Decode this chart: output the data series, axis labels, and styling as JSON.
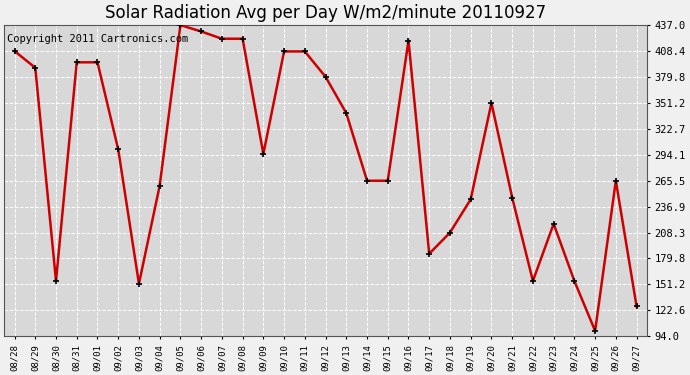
{
  "title": "Solar Radiation Avg per Day W/m2/minute 20110927",
  "copyright": "Copyright 2011 Cartronics.com",
  "dates": [
    "08/28",
    "08/29",
    "08/30",
    "08/31",
    "09/01",
    "09/02",
    "09/03",
    "09/04",
    "09/05",
    "09/06",
    "09/07",
    "09/08",
    "09/09",
    "09/10",
    "09/11",
    "09/12",
    "09/13",
    "09/14",
    "09/15",
    "09/16",
    "09/17",
    "09/18",
    "09/19",
    "09/20",
    "09/21",
    "09/22",
    "09/23",
    "09/24",
    "09/25",
    "09/26",
    "09/27"
  ],
  "values": [
    408.4,
    390.0,
    155.0,
    396.0,
    396.0,
    300.0,
    152.0,
    260.0,
    437.0,
    430.0,
    422.0,
    422.0,
    295.0,
    408.0,
    408.0,
    380.0,
    340.0,
    265.5,
    265.5,
    420.0,
    185.0,
    208.3,
    245.0,
    351.2,
    247.0,
    155.0,
    218.0,
    155.0,
    100.0,
    265.5,
    127.0
  ],
  "line_color": "#cc0000",
  "marker_color": "#000000",
  "bg_color": "#d8d8d8",
  "title_fontsize": 12,
  "copyright_fontsize": 7.5,
  "ylim": [
    94.0,
    437.0
  ],
  "yticks": [
    94.0,
    122.6,
    151.2,
    179.8,
    208.3,
    236.9,
    265.5,
    294.1,
    322.7,
    351.2,
    379.8,
    408.4,
    437.0
  ]
}
